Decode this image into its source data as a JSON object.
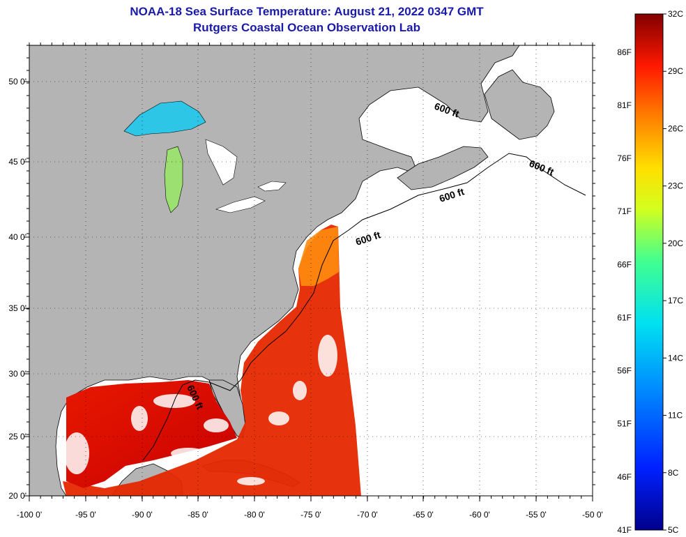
{
  "header": {
    "title": "NOAA-18 Sea Surface Temperature:  August 21, 2022 0347 GMT",
    "subtitle": "Rutgers Coastal Ocean Observation Lab"
  },
  "map": {
    "lon_range": [
      -100,
      -50
    ],
    "lat_range": [
      20,
      52.5
    ],
    "lon_ticks": [
      "-100 0'",
      "-95 0'",
      "-90 0'",
      "-85 0'",
      "-80 0'",
      "-75 0'",
      "-70 0'",
      "-65 0'",
      "-60 0'",
      "-55 0'",
      "-50 0'"
    ],
    "lat_ticks": [
      "20 0'",
      "25 0'",
      "30 0'",
      "35 0'",
      "40 0'",
      "45 0'",
      "50 0'"
    ],
    "contour_labels": [
      "600 ft",
      "600 ft",
      "600 ft",
      "600 ft",
      "600 ft"
    ],
    "land_color": "#b4b4b4",
    "ocean_color": "#ffffff"
  },
  "colorbar": {
    "celsius_labels": [
      "32C",
      "29C",
      "26C",
      "23C",
      "20C",
      "17C",
      "14C",
      "11C",
      "8C",
      "5C"
    ],
    "fahrenheit_labels": [
      "86F",
      "81F",
      "76F",
      "71F",
      "66F",
      "61F",
      "56F",
      "51F",
      "46F",
      "41F"
    ],
    "min_c": 5,
    "max_c": 32
  }
}
